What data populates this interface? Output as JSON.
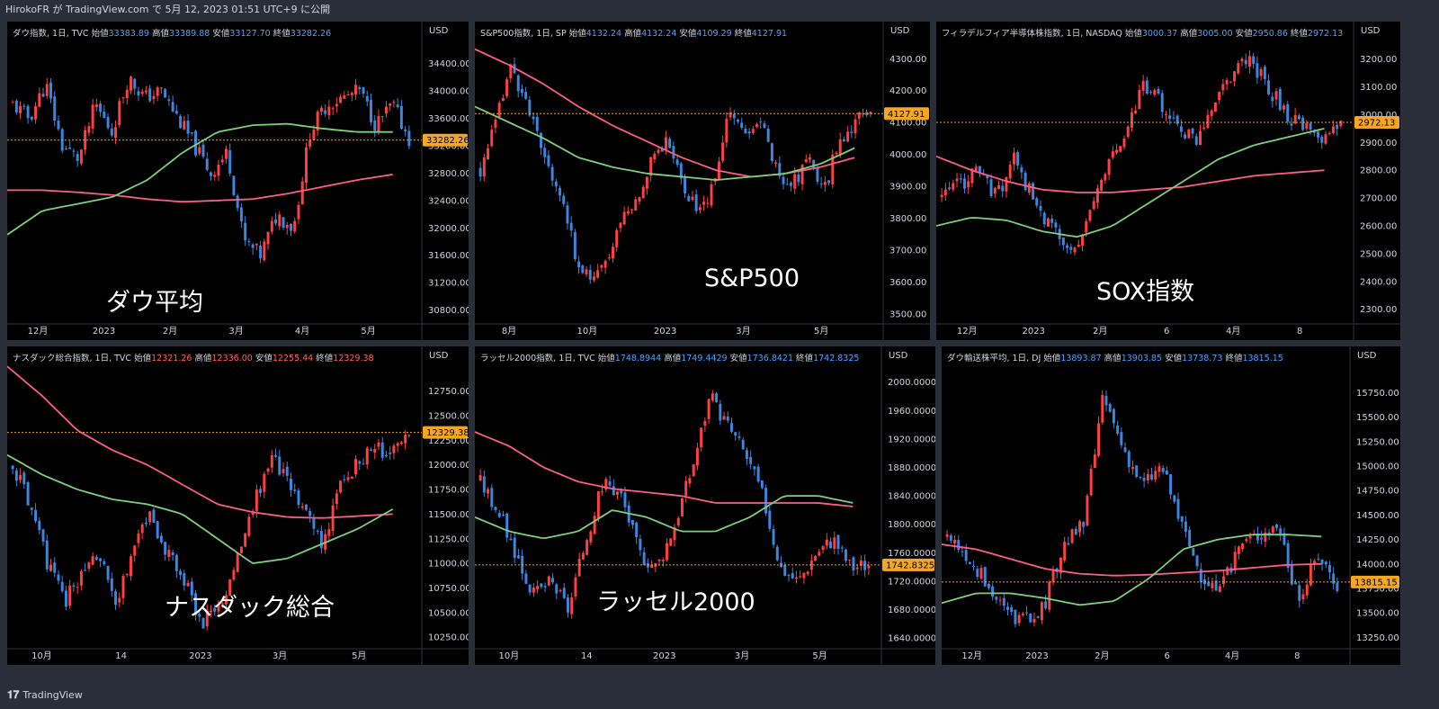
{
  "header": {
    "text": "HirokoFR が TradingView.com で 5月 12, 2023 01:51 UTC+9 に公開"
  },
  "footer": {
    "logo": "𝟏𝟕",
    "brand": "TradingView"
  },
  "colors": {
    "up": "#ff4040",
    "down": "#3a86e0",
    "ma_pink": "#ff5c8a",
    "ma_green": "#7fd07a",
    "price_line": "#f5a623",
    "axis_bg": "#000000",
    "page_bg": "#2a2e39"
  },
  "chart_data": [
    {
      "type": "candlestick",
      "title": "ダウ指数, 1日, TVC",
      "ohlc_labels": {
        "open_label": "始値",
        "open": "33383.89",
        "high_label": "高値",
        "high": "33389.88",
        "low_label": "安値",
        "low": "33127.70",
        "close_label": "終値",
        "close": "33282.26"
      },
      "overlay_label": "ダウ平均",
      "currency": "USD",
      "last_price": "33282.26",
      "y_ticks": [
        "34400.00",
        "34000.00",
        "33600.00",
        "33200.00",
        "32800.00",
        "32400.00",
        "32000.00",
        "31600.00",
        "31200.00",
        "30800.00"
      ],
      "ylim": [
        30650,
        34750
      ],
      "x_ticks": [
        "12月",
        "2023",
        "2月",
        "3月",
        "4月",
        "5月"
      ],
      "seed": 11,
      "path": [
        33800,
        33600,
        34100,
        33200,
        33000,
        33800,
        33400,
        34200,
        33900,
        34000,
        33600,
        33200,
        32800,
        33100,
        31800,
        31600,
        32200,
        32000,
        33400,
        33800,
        33900,
        34000,
        33500,
        33800,
        33300
      ],
      "ma_green": [
        31900,
        32250,
        32350,
        32450,
        32700,
        33100,
        33400,
        33500,
        33520,
        33450,
        33400,
        33400
      ],
      "ma_pink": [
        32550,
        32550,
        32520,
        32480,
        32420,
        32380,
        32400,
        32420,
        32500,
        32600,
        32700,
        32780
      ]
    },
    {
      "type": "candlestick",
      "title": "S&P500指数, 1日, SP",
      "ohlc_labels": {
        "open_label": "始値",
        "open": "4132.24",
        "high_label": "高値",
        "high": "4132.24",
        "low_label": "安値",
        "low": "4109.29",
        "close_label": "終値",
        "close": "4127.91"
      },
      "overlay_label": "S&P500",
      "currency": "USD",
      "last_price": "4127.91",
      "y_ticks": [
        "4300.00",
        "4200.00",
        "4100.00",
        "4000.00",
        "3900.00",
        "3800.00",
        "3700.00",
        "3600.00",
        "3500.00"
      ],
      "ylim": [
        3480,
        4360
      ],
      "x_ticks": [
        "8月",
        "10月",
        "2023",
        "3月",
        "5月"
      ],
      "seed": 23,
      "path": [
        3950,
        4100,
        4280,
        4150,
        4000,
        3900,
        3700,
        3600,
        3650,
        3800,
        3850,
        4000,
        4050,
        3900,
        3820,
        3900,
        4150,
        4050,
        4100,
        3950,
        3900,
        4000,
        3880,
        4050,
        4100,
        4130
      ],
      "ma_green": [
        4150,
        4100,
        4050,
        3990,
        3960,
        3940,
        3930,
        3920,
        3930,
        3940,
        3970,
        4020
      ],
      "ma_pink": [
        4330,
        4280,
        4220,
        4150,
        4090,
        4040,
        3990,
        3950,
        3930,
        3940,
        3960,
        3990
      ]
    },
    {
      "type": "candlestick",
      "title": "フィラデルフィア半導体株指数, 1日, NASDAQ",
      "ohlc_labels": {
        "open_label": "始値",
        "open": "3000.37",
        "high_label": "高値",
        "high": "3005.00",
        "low_label": "安値",
        "low": "2950.86",
        "close_label": "終値",
        "close": "2972.13"
      },
      "overlay_label": "SOX指数",
      "currency": "USD",
      "last_price": "2972.13",
      "y_ticks": [
        "3200.00",
        "3100.00",
        "3000.00",
        "2900.00",
        "2800.00",
        "2700.00",
        "2600.00",
        "2500.00",
        "2400.00",
        "2300.00"
      ],
      "ylim": [
        2260,
        3270
      ],
      "x_ticks": [
        "12月",
        "2023",
        "2月",
        "6",
        "4月",
        "8"
      ],
      "seed": 37,
      "path": [
        2700,
        2750,
        2800,
        2700,
        2850,
        2700,
        2600,
        2500,
        2600,
        2800,
        2900,
        3100,
        3050,
        2950,
        2900,
        3050,
        3150,
        3200,
        3100,
        3000,
        2950,
        2900,
        2980
      ],
      "ma_green": [
        2600,
        2630,
        2620,
        2580,
        2560,
        2600,
        2680,
        2760,
        2840,
        2890,
        2920,
        2950
      ],
      "ma_pink": [
        2850,
        2800,
        2760,
        2730,
        2720,
        2720,
        2730,
        2740,
        2760,
        2780,
        2790,
        2800
      ]
    },
    {
      "type": "candlestick",
      "title": "ナスダック総合指数, 1日, TVC",
      "ohlc_labels": {
        "open_label": "始値",
        "open": "12321.26",
        "high_label": "高値",
        "high": "12336.00",
        "low_label": "安値",
        "low": "12255.44",
        "close_label": "終値",
        "close": "12329.38"
      },
      "overlay_label": "ナスダック総合",
      "currency": "USD",
      "last_price": "12329.38",
      "y_ticks": [
        "12750.00",
        "12500.00",
        "12250.00",
        "12000.00",
        "11750.00",
        "11500.00",
        "11250.00",
        "11000.00",
        "10750.00",
        "10500.00",
        "10250.00"
      ],
      "ylim": [
        10170,
        13020
      ],
      "x_ticks": [
        "10月",
        "14",
        "2023",
        "3月",
        "5月"
      ],
      "seed": 51,
      "path": [
        12000,
        11600,
        11000,
        10600,
        10900,
        11100,
        10500,
        11200,
        11500,
        11100,
        10800,
        10400,
        10600,
        11000,
        11600,
        12100,
        11800,
        11500,
        11200,
        11800,
        12000,
        12200,
        12100,
        12300
      ],
      "ma_green": [
        12100,
        11900,
        11750,
        11650,
        11600,
        11500,
        11250,
        11000,
        11050,
        11200,
        11350,
        11550
      ],
      "ma_pink": [
        13000,
        12700,
        12350,
        12150,
        12000,
        11800,
        11600,
        11520,
        11470,
        11460,
        11480,
        11500
      ]
    },
    {
      "type": "candlestick",
      "title": "ラッセル2000指数, 1日, TVC",
      "ohlc_labels": {
        "open_label": "始値",
        "open": "1748.8944",
        "high_label": "高値",
        "high": "1749.4429",
        "low_label": "安値",
        "low": "1736.8421",
        "close_label": "終値",
        "close": "1742.8325"
      },
      "overlay_label": "ラッセル2000",
      "currency": "USD",
      "last_price": "1742.8325",
      "y_ticks": [
        "2000.0000",
        "1960.0000",
        "1920.0000",
        "1880.0000",
        "1840.0000",
        "1800.0000",
        "1760.0000",
        "1720.0000",
        "1680.0000",
        "1640.0000"
      ],
      "ylim": [
        1630,
        2025
      ],
      "x_ticks": [
        "10月",
        "14",
        "2023",
        "3月",
        "5月"
      ],
      "seed": 67,
      "path": [
        1860,
        1820,
        1760,
        1700,
        1720,
        1680,
        1780,
        1860,
        1840,
        1760,
        1740,
        1800,
        1880,
        1980,
        1940,
        1900,
        1840,
        1740,
        1720,
        1760,
        1780,
        1740,
        1745
      ],
      "ma_green": [
        1810,
        1790,
        1780,
        1790,
        1820,
        1810,
        1790,
        1790,
        1810,
        1840,
        1840,
        1830
      ],
      "ma_pink": [
        1930,
        1910,
        1880,
        1860,
        1850,
        1845,
        1840,
        1830,
        1830,
        1830,
        1830,
        1825
      ]
    },
    {
      "type": "candlestick",
      "title": "ダウ輸送株平均, 1日, DJ",
      "ohlc_labels": {
        "open_label": "始値",
        "open": "13893.87",
        "high_label": "高値",
        "high": "13903.85",
        "low_label": "安値",
        "low": "13738.73",
        "close_label": "終値",
        "close": "13815.15"
      },
      "overlay_label": "",
      "currency": "USD",
      "last_price": "13815.15",
      "y_ticks": [
        "15750.00",
        "15500.00",
        "15250.00",
        "15000.00",
        "14750.00",
        "14500.00",
        "14250.00",
        "14000.00",
        "13750.00",
        "13500.00",
        "13250.00"
      ],
      "ylim": [
        13170,
        16040
      ],
      "x_ticks": [
        "12月",
        "2023",
        "2月",
        "6",
        "4月",
        "8"
      ],
      "seed": 83,
      "path": [
        14300,
        14100,
        13800,
        13500,
        13400,
        13600,
        14200,
        14400,
        15700,
        15200,
        14800,
        15000,
        14400,
        13900,
        13700,
        14200,
        14300,
        14400,
        13600,
        14100,
        13800
      ],
      "ma_green": [
        13600,
        13700,
        13700,
        13650,
        13580,
        13620,
        13850,
        14150,
        14250,
        14300,
        14300,
        14280
      ],
      "ma_pink": [
        14200,
        14150,
        14050,
        13950,
        13900,
        13880,
        13890,
        13910,
        13930,
        13960,
        13990,
        14000
      ]
    }
  ]
}
